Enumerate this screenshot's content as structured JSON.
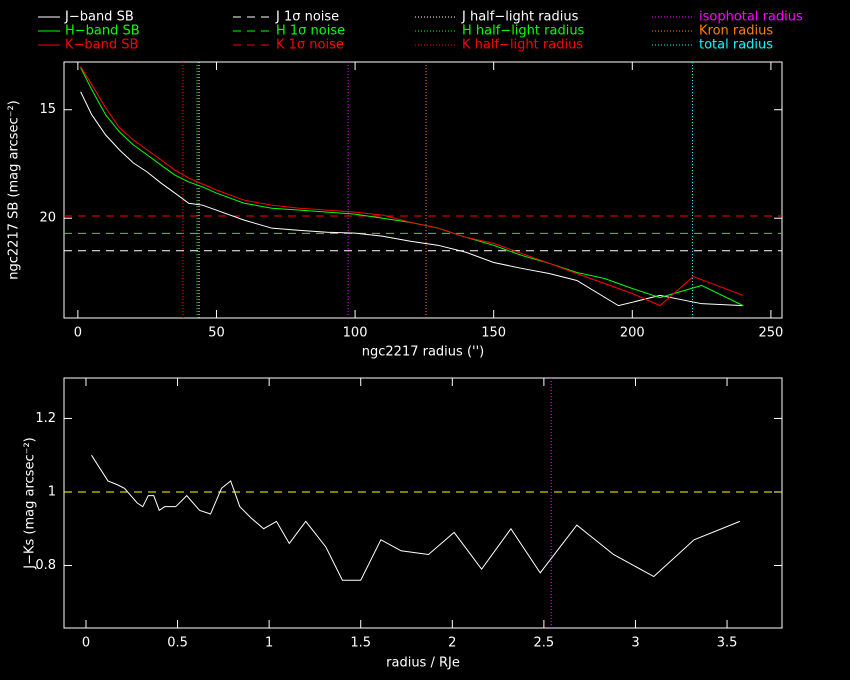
{
  "chart_data": [
    {
      "type": "line",
      "xlabel": "ngc2217 radius ('')",
      "ylabel": "ngc2217 SB (mag arcsec⁻²)",
      "xlim": [
        -5,
        254
      ],
      "ylim": [
        24.6,
        12.8
      ],
      "xticks": [
        0,
        50,
        100,
        150,
        200,
        250
      ],
      "yticks": [
        15,
        20
      ],
      "series": [
        {
          "name": "J−band SB",
          "color": "#ffffff",
          "x": [
            1,
            5,
            10,
            15,
            20,
            25,
            30,
            35,
            40,
            45,
            50,
            60,
            70,
            80,
            90,
            100,
            110,
            120,
            130,
            140,
            150,
            160,
            170,
            180,
            195,
            210,
            225,
            240
          ],
          "values": [
            14.17,
            15.23,
            16.16,
            16.85,
            17.45,
            17.87,
            18.38,
            18.84,
            19.31,
            19.4,
            19.63,
            20.09,
            20.46,
            20.56,
            20.65,
            20.69,
            20.83,
            21.06,
            21.25,
            21.57,
            22.04,
            22.31,
            22.55,
            22.87,
            24.03,
            23.56,
            23.94,
            24.03
          ]
        },
        {
          "name": "H−band SB",
          "color": "#00ff00",
          "x": [
            1,
            5,
            10,
            15,
            20,
            25,
            30,
            35,
            40,
            45,
            50,
            60,
            70,
            80,
            90,
            100,
            110,
            120,
            130,
            140,
            150,
            160,
            170,
            180,
            190,
            200,
            210,
            225,
            240
          ],
          "values": [
            13.06,
            14.07,
            15.23,
            16.02,
            16.62,
            17.08,
            17.55,
            18.01,
            18.33,
            18.56,
            18.84,
            19.31,
            19.54,
            19.63,
            19.72,
            19.81,
            20.0,
            20.19,
            20.46,
            20.88,
            21.25,
            21.71,
            22.08,
            22.5,
            22.78,
            23.24,
            23.66,
            23.1,
            24.03
          ]
        },
        {
          "name": "K−band SB",
          "color": "#ff0000",
          "x": [
            1,
            5,
            10,
            15,
            20,
            25,
            30,
            35,
            40,
            45,
            50,
            60,
            70,
            80,
            90,
            100,
            110,
            120,
            130,
            140,
            150,
            160,
            170,
            180,
            190,
            200,
            210,
            222,
            240
          ],
          "values": [
            13.01,
            13.84,
            14.91,
            15.83,
            16.39,
            16.85,
            17.31,
            17.78,
            18.15,
            18.43,
            18.7,
            19.17,
            19.4,
            19.54,
            19.63,
            19.72,
            19.86,
            20.19,
            20.46,
            20.88,
            21.16,
            21.62,
            22.08,
            22.55,
            23.01,
            23.47,
            24.03,
            22.69,
            23.56
          ]
        }
      ],
      "hlines": [
        {
          "name": "J 1σ noise",
          "color": "#ffffff",
          "value": 21.5
        },
        {
          "name": "H 1σ noise",
          "color": "#00ff00",
          "value": 20.7
        },
        {
          "name": "K 1σ noise",
          "color": "#ff0000",
          "value": 19.9
        }
      ],
      "vlines": [
        {
          "name": "J half−light radius",
          "color": "#ffffff",
          "value": 43.7
        },
        {
          "name": "H half−light radius",
          "color": "#00ff00",
          "value": 43
        },
        {
          "name": "K half−light radius",
          "color": "#ff0000",
          "value": 37.9
        },
        {
          "name": "isophotal radius",
          "color": "#ff00ff",
          "value": 97.5
        },
        {
          "name": "Kron radius",
          "color": "#ff8000",
          "value": 125.6
        },
        {
          "name": "total radius",
          "color": "#00ffff",
          "value": 221.7
        }
      ]
    },
    {
      "type": "line",
      "xlabel": "radius / RJe",
      "ylabel": "J−Ks (mag arcsec⁻²)",
      "xlim": [
        -0.12,
        3.8
      ],
      "ylim": [
        0.63,
        1.31
      ],
      "xticks": [
        0,
        0.5,
        1,
        1.5,
        2,
        2.5,
        3,
        3.5
      ],
      "yticks": [
        0.8,
        1,
        1.2
      ],
      "series": [
        {
          "color": "#ffffff",
          "x": [
            0.03,
            0.12,
            0.17,
            0.21,
            0.28,
            0.31,
            0.34,
            0.37,
            0.4,
            0.43,
            0.49,
            0.55,
            0.62,
            0.68,
            0.74,
            0.79,
            0.84,
            0.9,
            0.97,
            1.04,
            1.11,
            1.2,
            1.31,
            1.4,
            1.5,
            1.61,
            1.72,
            1.87,
            2.01,
            2.16,
            2.32,
            2.48,
            2.68,
            2.88,
            3.1,
            3.32,
            3.57
          ],
          "values": [
            1.1,
            1.03,
            1.02,
            1.01,
            0.97,
            0.96,
            0.99,
            0.99,
            0.95,
            0.96,
            0.96,
            0.99,
            0.95,
            0.94,
            1.01,
            1.03,
            0.96,
            0.93,
            0.9,
            0.92,
            0.86,
            0.92,
            0.85,
            0.76,
            0.76,
            0.87,
            0.84,
            0.83,
            0.89,
            0.79,
            0.9,
            0.78,
            0.91,
            0.83,
            0.77,
            0.87,
            0.92
          ]
        }
      ],
      "hlines": [
        {
          "color": "#ffff00",
          "value": 1
        }
      ],
      "vlines": [
        {
          "color": "#ff00ff",
          "value": 2.54
        }
      ]
    }
  ]
}
